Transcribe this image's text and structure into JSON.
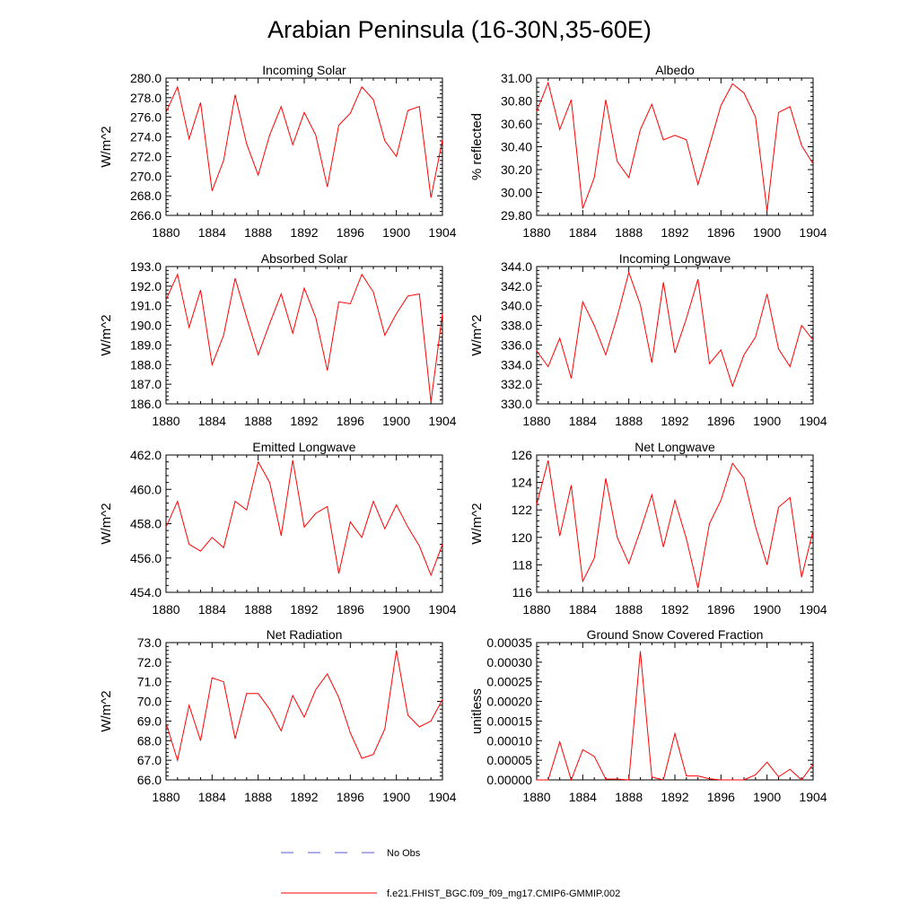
{
  "title": "Arabian Peninsula (16-30N,35-60E)",
  "chart_data": [
    {
      "type": "line",
      "title": "Incoming Solar",
      "ylabel": "W/m^2",
      "xlim": [
        1880,
        1904
      ],
      "ylim": [
        266,
        280
      ],
      "xticks": [
        "1880",
        "1884",
        "1888",
        "1892",
        "1896",
        "1900",
        "1904"
      ],
      "yticks": [
        "266.0",
        "268.0",
        "270.0",
        "272.0",
        "274.0",
        "276.0",
        "278.0",
        "280.0"
      ],
      "x": [
        1880,
        1881,
        1882,
        1883,
        1884,
        1885,
        1886,
        1887,
        1888,
        1889,
        1890,
        1891,
        1892,
        1893,
        1894,
        1895,
        1896,
        1897,
        1898,
        1899,
        1900,
        1901,
        1902,
        1903,
        1904
      ],
      "series": [
        {
          "name": "f.e21.FHIST_BGC.f09_f09_mg17.CMIP6-GMMIP.002",
          "values": [
            276.5,
            279.1,
            273.8,
            277.5,
            268.5,
            271.6,
            278.3,
            273.3,
            270.1,
            274.2,
            277.1,
            273.2,
            276.5,
            274.2,
            268.9,
            275.2,
            276.4,
            279.1,
            277.8,
            273.6,
            272.0,
            276.7,
            277.1,
            267.8,
            273.7
          ]
        }
      ]
    },
    {
      "type": "line",
      "title": "Albedo",
      "ylabel": "% reflected",
      "xlim": [
        1880,
        1904
      ],
      "ylim": [
        29.8,
        31.0
      ],
      "xticks": [
        "1880",
        "1884",
        "1888",
        "1892",
        "1896",
        "1900",
        "1904"
      ],
      "yticks": [
        "29.80",
        "30.00",
        "30.20",
        "30.40",
        "30.60",
        "30.80",
        "31.00"
      ],
      "x": [
        1880,
        1881,
        1882,
        1883,
        1884,
        1885,
        1886,
        1887,
        1888,
        1889,
        1890,
        1891,
        1892,
        1893,
        1894,
        1895,
        1896,
        1897,
        1898,
        1899,
        1900,
        1901,
        1902,
        1903,
        1904
      ],
      "series": [
        {
          "name": "f.e21.FHIST_BGC.f09_f09_mg17.CMIP6-GMMIP.002",
          "values": [
            30.71,
            30.96,
            30.55,
            30.81,
            29.86,
            30.13,
            30.81,
            30.27,
            30.13,
            30.55,
            30.77,
            30.46,
            30.5,
            30.46,
            30.07,
            30.41,
            30.76,
            30.95,
            30.87,
            30.66,
            29.84,
            30.7,
            30.75,
            30.41,
            30.25
          ]
        }
      ]
    },
    {
      "type": "line",
      "title": "Absorbed Solar",
      "ylabel": "W/m^2",
      "xlim": [
        1880,
        1904
      ],
      "ylim": [
        186,
        193
      ],
      "xticks": [
        "1880",
        "1884",
        "1888",
        "1892",
        "1896",
        "1900",
        "1904"
      ],
      "yticks": [
        "186.0",
        "187.0",
        "188.0",
        "189.0",
        "190.0",
        "191.0",
        "192.0",
        "193.0"
      ],
      "x": [
        1880,
        1881,
        1882,
        1883,
        1884,
        1885,
        1886,
        1887,
        1888,
        1889,
        1890,
        1891,
        1892,
        1893,
        1894,
        1895,
        1896,
        1897,
        1898,
        1899,
        1900,
        1901,
        1902,
        1903,
        1904
      ],
      "series": [
        {
          "name": "f.e21.FHIST_BGC.f09_f09_mg17.CMIP6-GMMIP.002",
          "values": [
            191.3,
            192.6,
            189.9,
            191.8,
            188.0,
            189.5,
            192.4,
            190.4,
            188.5,
            190.1,
            191.6,
            189.6,
            191.9,
            190.4,
            187.7,
            191.2,
            191.1,
            192.6,
            191.7,
            189.5,
            190.6,
            191.5,
            191.6,
            186.1,
            190.6
          ]
        }
      ]
    },
    {
      "type": "line",
      "title": "Incoming Longwave",
      "ylabel": "W/m^2",
      "xlim": [
        1880,
        1904
      ],
      "ylim": [
        330,
        344
      ],
      "xticks": [
        "1880",
        "1884",
        "1888",
        "1892",
        "1896",
        "1900",
        "1904"
      ],
      "yticks": [
        "330.0",
        "332.0",
        "334.0",
        "336.0",
        "338.0",
        "340.0",
        "342.0",
        "344.0"
      ],
      "x": [
        1880,
        1881,
        1882,
        1883,
        1884,
        1885,
        1886,
        1887,
        1888,
        1889,
        1890,
        1891,
        1892,
        1893,
        1894,
        1895,
        1896,
        1897,
        1898,
        1899,
        1900,
        1901,
        1902,
        1903,
        1904
      ],
      "series": [
        {
          "name": "f.e21.FHIST_BGC.f09_f09_mg17.CMIP6-GMMIP.002",
          "values": [
            335.4,
            333.8,
            336.7,
            332.6,
            340.4,
            338.0,
            335.0,
            338.9,
            343.4,
            340.1,
            334.2,
            342.4,
            335.2,
            338.7,
            342.7,
            334.1,
            335.5,
            331.8,
            335.0,
            336.8,
            341.2,
            335.6,
            333.8,
            338.0,
            336.5
          ]
        }
      ]
    },
    {
      "type": "line",
      "title": "Emitted Longwave",
      "ylabel": "W/m^2",
      "xlim": [
        1880,
        1904
      ],
      "ylim": [
        454,
        462
      ],
      "xticks": [
        "1880",
        "1884",
        "1888",
        "1892",
        "1896",
        "1900",
        "1904"
      ],
      "yticks": [
        "454.0",
        "456.0",
        "458.0",
        "460.0",
        "462.0"
      ],
      "x": [
        1880,
        1881,
        1882,
        1883,
        1884,
        1885,
        1886,
        1887,
        1888,
        1889,
        1890,
        1891,
        1892,
        1893,
        1894,
        1895,
        1896,
        1897,
        1898,
        1899,
        1900,
        1901,
        1902,
        1903,
        1904
      ],
      "series": [
        {
          "name": "f.e21.FHIST_BGC.f09_f09_mg17.CMIP6-GMMIP.002",
          "values": [
            457.8,
            459.3,
            456.8,
            456.4,
            457.2,
            456.6,
            459.3,
            458.8,
            461.6,
            460.4,
            457.3,
            461.7,
            457.8,
            458.6,
            459.0,
            455.1,
            458.1,
            457.2,
            459.3,
            457.7,
            459.1,
            457.8,
            456.7,
            455.0,
            456.8
          ]
        }
      ]
    },
    {
      "type": "line",
      "title": "Net Longwave",
      "ylabel": "W/m^2",
      "xlim": [
        1880,
        1904
      ],
      "ylim": [
        116,
        126
      ],
      "xticks": [
        "1880",
        "1884",
        "1888",
        "1892",
        "1896",
        "1900",
        "1904"
      ],
      "yticks": [
        "116",
        "118",
        "120",
        "122",
        "124",
        "126"
      ],
      "x": [
        1880,
        1881,
        1882,
        1883,
        1884,
        1885,
        1886,
        1887,
        1888,
        1889,
        1890,
        1891,
        1892,
        1893,
        1894,
        1895,
        1896,
        1897,
        1898,
        1899,
        1900,
        1901,
        1902,
        1903,
        1904
      ],
      "series": [
        {
          "name": "f.e21.FHIST_BGC.f09_f09_mg17.CMIP6-GMMIP.002",
          "values": [
            122.4,
            125.6,
            120.1,
            123.8,
            116.8,
            118.5,
            124.3,
            120.0,
            118.1,
            120.5,
            123.1,
            119.3,
            122.7,
            119.9,
            116.3,
            121.0,
            122.7,
            125.4,
            124.3,
            120.8,
            118.0,
            122.2,
            122.9,
            117.1,
            120.5
          ]
        }
      ]
    },
    {
      "type": "line",
      "title": "Net Radiation",
      "ylabel": "W/m^2",
      "xlim": [
        1880,
        1904
      ],
      "ylim": [
        66,
        73
      ],
      "xticks": [
        "1880",
        "1884",
        "1888",
        "1892",
        "1896",
        "1900",
        "1904"
      ],
      "yticks": [
        "66.0",
        "67.0",
        "68.0",
        "69.0",
        "70.0",
        "71.0",
        "72.0",
        "73.0"
      ],
      "x": [
        1880,
        1881,
        1882,
        1883,
        1884,
        1885,
        1886,
        1887,
        1888,
        1889,
        1890,
        1891,
        1892,
        1893,
        1894,
        1895,
        1896,
        1897,
        1898,
        1899,
        1900,
        1901,
        1902,
        1903,
        1904
      ],
      "series": [
        {
          "name": "f.e21.FHIST_BGC.f09_f09_mg17.CMIP6-GMMIP.002",
          "values": [
            68.9,
            67.0,
            69.8,
            68.0,
            71.2,
            71.0,
            68.1,
            70.4,
            70.4,
            69.6,
            68.5,
            70.3,
            69.2,
            70.6,
            71.4,
            70.2,
            68.4,
            67.1,
            67.3,
            68.6,
            72.6,
            69.3,
            68.7,
            69.0,
            70.1
          ]
        }
      ]
    },
    {
      "type": "line",
      "title": "Ground Snow Covered Fraction",
      "ylabel": "unitless",
      "xlim": [
        1880,
        1904
      ],
      "ylim": [
        0,
        0.00035
      ],
      "xticks": [
        "1880",
        "1884",
        "1888",
        "1892",
        "1896",
        "1900",
        "1904"
      ],
      "yticks": [
        "0.00000",
        "0.00005",
        "0.00010",
        "0.00015",
        "0.00020",
        "0.00025",
        "0.00030",
        "0.00035"
      ],
      "x": [
        1880,
        1881,
        1882,
        1883,
        1884,
        1885,
        1886,
        1887,
        1888,
        1889,
        1890,
        1891,
        1892,
        1893,
        1894,
        1895,
        1896,
        1897,
        1898,
        1899,
        1900,
        1901,
        1902,
        1903,
        1904
      ],
      "series": [
        {
          "name": "f.e21.FHIST_BGC.f09_f09_mg17.CMIP6-GMMIP.002",
          "values": [
            0,
            0,
            9.7e-05,
            0,
            7.7e-05,
            6e-05,
            2e-06,
            2e-06,
            0,
            0.000328,
            7e-06,
            0,
            0.000118,
            1e-05,
            1e-05,
            3e-06,
            0,
            0,
            0,
            1.3e-05,
            4.5e-05,
            8e-06,
            2.7e-05,
            0,
            4e-05
          ]
        }
      ]
    }
  ],
  "legend": {
    "items": [
      {
        "label": "No Obs",
        "style": "dashed",
        "color": "#5a5ad0"
      },
      {
        "label": "f.e21.FHIST_BGC.f09_f09_mg17.CMIP6-GMMIP.002",
        "style": "solid",
        "color": "#ff0000"
      }
    ]
  },
  "colors": {
    "series": "#ff0000",
    "axis": "#000000"
  }
}
